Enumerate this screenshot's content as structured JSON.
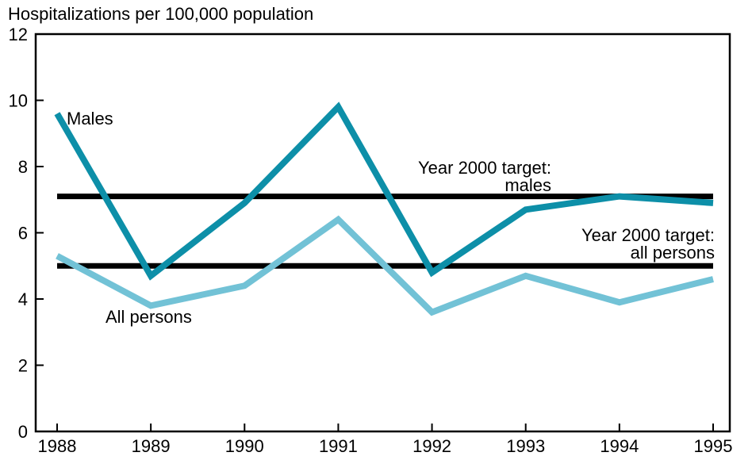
{
  "chart_data": {
    "type": "line",
    "title": "",
    "ylabel": "Hospitalizations per 100,000 population",
    "xlabel": "",
    "x": [
      "1988",
      "1989",
      "1990",
      "1991",
      "1992",
      "1993",
      "1994",
      "1995"
    ],
    "ylim": [
      0,
      12
    ],
    "yticks": [
      "0",
      "2",
      "4",
      "6",
      "8",
      "10",
      "12"
    ],
    "grid": false,
    "series": [
      {
        "name": "Males",
        "values": [
          9.6,
          4.7,
          6.9,
          9.8,
          4.8,
          6.7,
          7.1,
          6.9
        ],
        "color": "#0d8fa8"
      },
      {
        "name": "All persons",
        "values": [
          5.3,
          3.8,
          4.4,
          6.4,
          3.6,
          4.7,
          3.9,
          4.6
        ],
        "color": "#72c2d6"
      }
    ],
    "reference_lines": [
      {
        "value": 7.1,
        "label_line1": "Year  2000 target:",
        "label_line2": "males",
        "color": "#000000"
      },
      {
        "value": 5.0,
        "label_line1": "Year  2000 target:",
        "label_line2": "all persons",
        "color": "#000000"
      }
    ]
  }
}
